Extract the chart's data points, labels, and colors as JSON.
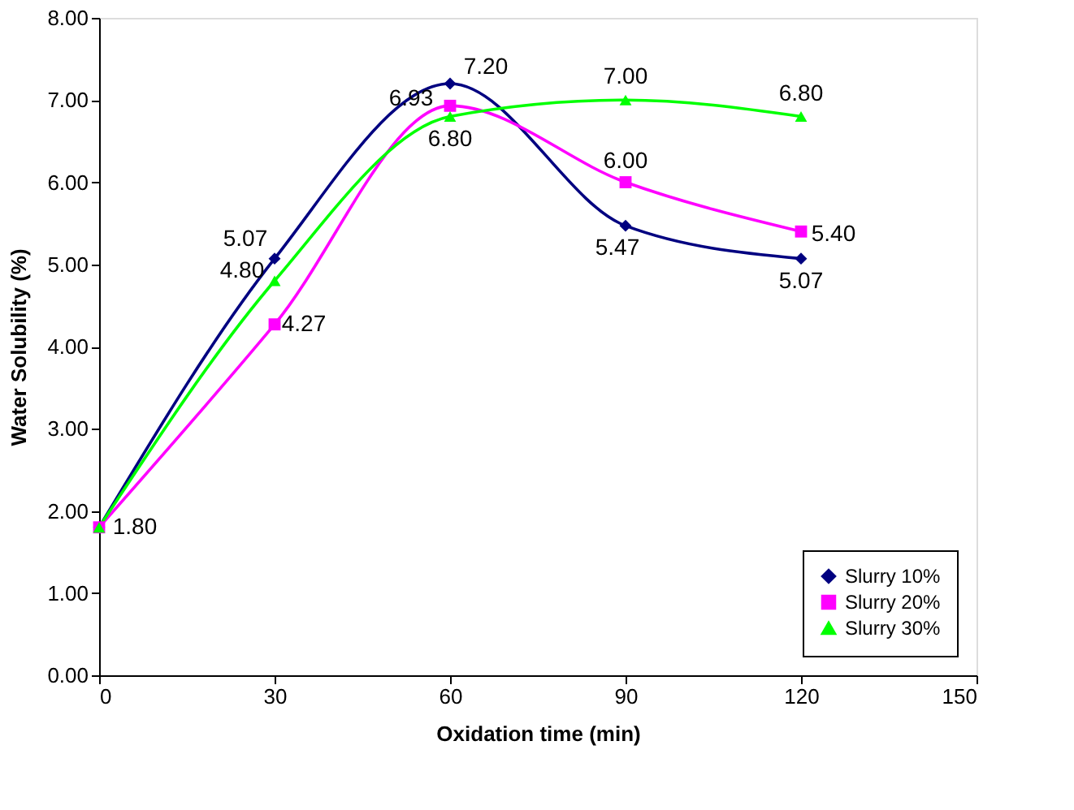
{
  "chart_data": {
    "type": "line",
    "xlabel": "Oxidation time (min)",
    "ylabel": "Water Solubility (%)",
    "x": [
      0,
      30,
      60,
      90,
      120
    ],
    "series": [
      {
        "name": "Slurry 10%",
        "color": "#000080",
        "marker": "diamond",
        "values": [
          1.8,
          5.07,
          7.2,
          5.47,
          5.07
        ],
        "value_labels": [
          "1.80",
          "5.07",
          "7.20",
          "5.47",
          "5.07"
        ]
      },
      {
        "name": "Slurry 20%",
        "color": "#ff00ff",
        "marker": "square",
        "values": [
          1.8,
          4.27,
          6.93,
          6.0,
          5.4
        ],
        "value_labels": [
          null,
          "4.27",
          "6.93",
          "6.00",
          "5.40"
        ]
      },
      {
        "name": "Slurry 30%",
        "color": "#00ff00",
        "marker": "triangle",
        "values": [
          1.8,
          4.8,
          6.8,
          7.0,
          6.8
        ],
        "value_labels": [
          null,
          "4.80",
          "6.80",
          "7.00",
          "6.80"
        ]
      }
    ],
    "xlim": [
      0,
      150
    ],
    "xticks": [
      0,
      30,
      60,
      90,
      120,
      150
    ],
    "ylim": [
      0,
      8
    ],
    "yticks": [
      {
        "value": 0,
        "label": "0.00"
      },
      {
        "value": 1,
        "label": "1.00"
      },
      {
        "value": 2,
        "label": "2.00"
      },
      {
        "value": 3,
        "label": "3.00"
      },
      {
        "value": 4,
        "label": "4.00"
      },
      {
        "value": 5,
        "label": "5.00"
      },
      {
        "value": 6,
        "label": "6.00"
      },
      {
        "value": 7,
        "label": "7.00"
      },
      {
        "value": 8,
        "label": "8.00"
      }
    ],
    "grid": false,
    "legend": "bottom right",
    "line_style": "solid"
  }
}
